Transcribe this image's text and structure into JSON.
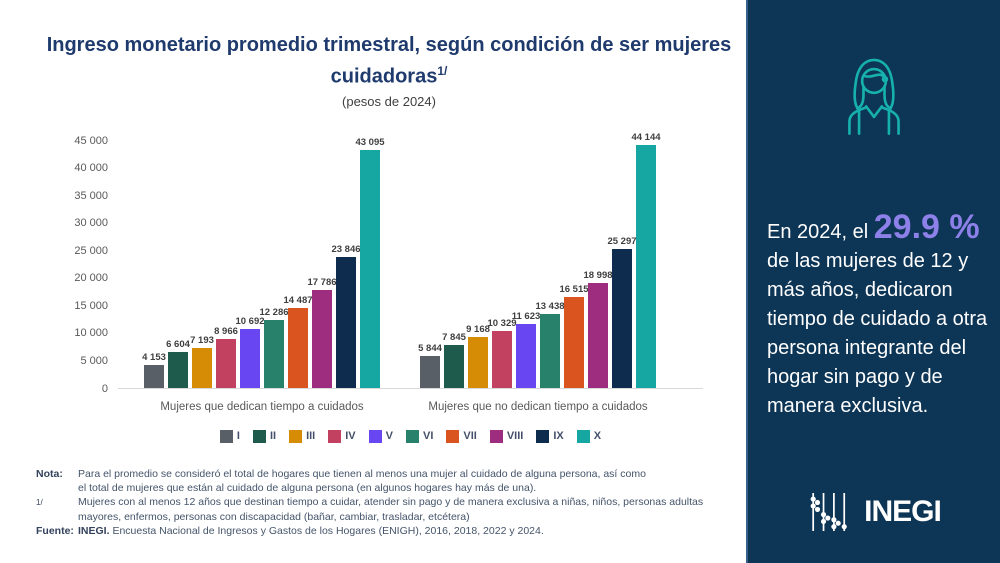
{
  "header": {
    "title": "Ingreso monetario promedio trimestral, según condición de ser mujeres cuidadoras",
    "title_superscript": "1/",
    "subtitle": "(pesos de 2024)"
  },
  "chart_data": {
    "type": "bar",
    "title": "Ingreso monetario promedio trimestral, según condición de ser mujeres cuidadoras (pesos de 2024)",
    "ylim": [
      0,
      45000
    ],
    "ytick_step": 5000,
    "yticks": [
      "45 000",
      "40 000",
      "35 000",
      "30 000",
      "25 000",
      "20 000",
      "15 000",
      "10 000",
      "5 000",
      "0"
    ],
    "grid": false,
    "legend_position": "bottom",
    "categories": [
      "Mujeres que dedican tiempo a cuidados",
      "Mujeres que no dedican tiempo a cuidados"
    ],
    "deciles": [
      "I",
      "II",
      "III",
      "IV",
      "V",
      "VI",
      "VII",
      "VIII",
      "IX",
      "X"
    ],
    "decile_colors": [
      "#585f66",
      "#1e5b4c",
      "#d68c05",
      "#c24060",
      "#6847f2",
      "#28816a",
      "#da5420",
      "#9e2d80",
      "#0e2c4e",
      "#17a7a2"
    ],
    "series": [
      {
        "name": "Mujeres que dedican tiempo a cuidados",
        "values": [
          4153,
          6604,
          7193,
          8966,
          10692,
          12286,
          14487,
          17786,
          23846,
          43095
        ],
        "labels": [
          "4 153",
          "6 604",
          "7 193",
          "8 966",
          "10 692",
          "12 286",
          "14 487",
          "17 786",
          "23 846",
          "43 095"
        ]
      },
      {
        "name": "Mujeres que no dedican tiempo a cuidados",
        "values": [
          5844,
          7845,
          9168,
          10329,
          11623,
          13438,
          16515,
          18998,
          25297,
          44144
        ],
        "labels": [
          "5 844",
          "7 845",
          "9 168",
          "10 329",
          "11 623",
          "13 438",
          "16 515",
          "18 998",
          "25 297",
          "44 144"
        ]
      }
    ]
  },
  "sidebar": {
    "background_color": "#0d3556",
    "accent_color": "#16b0ad",
    "stat_prefix": "En 2024, el",
    "stat_value": "29.9 %",
    "stat_value_color": "#8d80e8",
    "stat_suffix": "de las mujeres de 12 y más años, dedicaron tiempo de cuidado a otra persona integrante del hogar sin pago y de manera exclusiva.",
    "logo_text": "INEGI"
  },
  "notes": {
    "nota_label": "Nota:",
    "nota_lines": [
      "Para el promedio se consideró el total de hogares que tienen al menos una mujer al cuidado de alguna persona, así como",
      "el total de mujeres que están al cuidado de alguna persona (en algunos hogares hay más de una)."
    ],
    "footnote_label": "1/",
    "footnote_lines": [
      "Mujeres con al menos 12 años que destinan tiempo a cuidar, atender sin pago y de manera exclusiva a niñas, niños, personas adultas",
      "mayores, enfermos, personas con discapacidad (bañar, cambiar, trasladar, etcétera)"
    ],
    "fuente_label": "Fuente:",
    "fuente_source": "INEGI.",
    "fuente_text": "Encuesta Nacional de Ingresos y Gastos de los Hogares (ENIGH), 2016, 2018, 2022 y 2024."
  }
}
